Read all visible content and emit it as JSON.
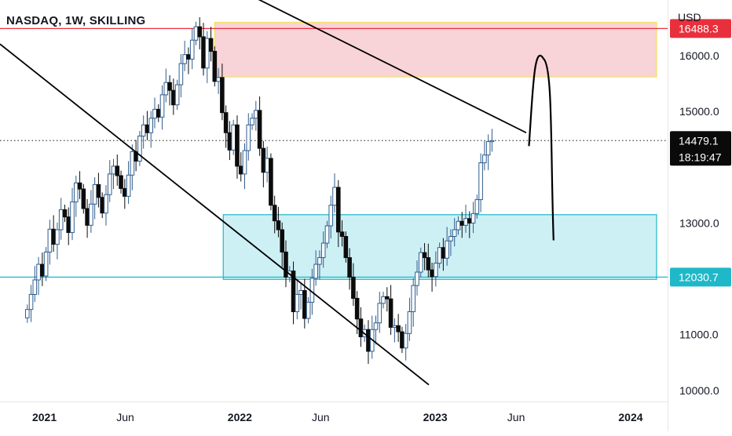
{
  "header": {
    "title": "NASDAQ, 1W, SKILLING",
    "currency": "USD"
  },
  "colors": {
    "bull": "#ffffff",
    "bull_border": "#2f5d8f",
    "bull_wick": "#2f5d8f",
    "bear": "#0c0c0c",
    "bear_wick": "#0c0c0c",
    "resistance_fill": "#f8d3d8",
    "resistance_border": "#f5e15a",
    "support_fill": "#cdf0f5",
    "support_border": "#1fb8c9",
    "red_line": "#e8303d",
    "cyan_line": "#1fb8c9",
    "trendline": "#000000",
    "current_label_bg": "#0a0a0a"
  },
  "price_axis": {
    "ticks": [
      "16000.0",
      "15000.0",
      "13000.0",
      "11000.0",
      "10000.0"
    ],
    "labels": {
      "red": "16488.3",
      "current": "14479.1",
      "countdown": "18:19:47",
      "cyan": "12030.7"
    }
  },
  "time_axis": {
    "ticks": [
      "2021",
      "Jun",
      "2022",
      "Jun",
      "2023",
      "Jun",
      "2024"
    ]
  },
  "chart_data": {
    "type": "candlestick",
    "symbol": "NASDAQ",
    "interval": "1W",
    "broker": "SKILLING",
    "ylim": [
      9800,
      17000
    ],
    "xlim": [
      "2020-10-10",
      "2024-03-10"
    ],
    "horizontal_levels": [
      {
        "price": 16488.3,
        "color": "red"
      },
      {
        "price": 12030.7,
        "color": "cyan"
      },
      {
        "price": 14479.1,
        "style": "dotted",
        "note": "last price"
      }
    ],
    "zones": [
      {
        "kind": "resistance",
        "from": "2021-11-15",
        "to": "2024-03-10",
        "low": 15620,
        "high": 16600
      },
      {
        "kind": "support",
        "from": "2021-12-01",
        "to": "2024-03-10",
        "low": 11990,
        "high": 13150
      }
    ],
    "trendlines": [
      {
        "from": [
          "2020-10-10",
          16210
        ],
        "to": [
          "2022-12-20",
          10100
        ]
      },
      {
        "from": [
          "2021-11-05",
          17450
        ],
        "to": [
          "2023-06-20",
          14620
        ]
      }
    ],
    "projection": [
      [
        "2023-06-25",
        14380
      ],
      [
        "2023-07-22",
        15950
      ],
      [
        "2023-08-10",
        12690
      ]
    ],
    "weekly_closes": [
      11450,
      11720,
      11980,
      12260,
      12050,
      12480,
      12890,
      12620,
      12880,
      13240,
      13110,
      12830,
      13380,
      13720,
      13610,
      13260,
      12960,
      13340,
      13690,
      13460,
      13180,
      13510,
      13880,
      14020,
      13850,
      13620,
      13480,
      13860,
      14280,
      14110,
      14560,
      14760,
      14620,
      14880,
      15040,
      14900,
      15300,
      15520,
      15380,
      15120,
      15480,
      15860,
      16020,
      15940,
      16280,
      16520,
      16340,
      15780,
      16310,
      16080,
      15540,
      15610,
      14980,
      14620,
      14310,
      14760,
      14020,
      13880,
      14300,
      14760,
      14880,
      15020,
      14340,
      13910,
      14160,
      13320,
      13040,
      12880,
      12480,
      12030,
      12140,
      11410,
      11720,
      11790,
      11290,
      11580,
      12010,
      12260,
      12380,
      12640,
      12950,
      13320,
      13640,
      12840,
      12760,
      12380,
      12030,
      11650,
      11280,
      10960,
      11090,
      10700,
      11090,
      11210,
      11560,
      11680,
      11640,
      11130,
      11160,
      11050,
      10760,
      11020,
      11410,
      11880,
      12120,
      12470,
      12380,
      12160,
      12040,
      12280,
      12560,
      12370,
      12680,
      12760,
      12880,
      13030,
      12960,
      13080,
      13000,
      13170,
      13420,
      14080,
      14220,
      14460,
      14479.1
    ]
  }
}
